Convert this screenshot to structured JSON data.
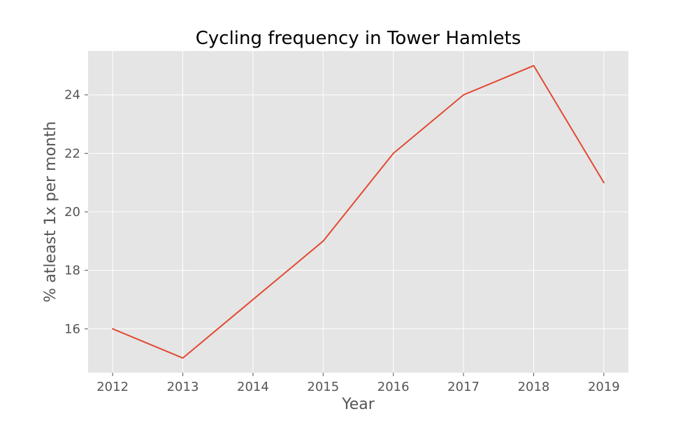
{
  "chart_data": {
    "type": "line",
    "title": "Cycling frequency in Tower Hamlets",
    "xlabel": "Year",
    "ylabel": "% atleast 1x per month",
    "x": [
      2012,
      2013,
      2014,
      2015,
      2016,
      2017,
      2018,
      2019
    ],
    "series": [
      {
        "values": [
          16,
          15,
          17,
          19,
          22,
          24,
          25,
          21
        ]
      }
    ],
    "x_ticks": [
      "2012",
      "2013",
      "2014",
      "2015",
      "2016",
      "2017",
      "2018",
      "2019"
    ],
    "y_ticks": [
      "16",
      "18",
      "20",
      "22",
      "24"
    ],
    "xlim": [
      2011.65,
      2019.35
    ],
    "ylim": [
      14.5,
      25.5
    ],
    "grid": true,
    "colors": {
      "background": "#E5E5E5",
      "grid": "#FFFFFF",
      "line": "#E24A33"
    }
  }
}
